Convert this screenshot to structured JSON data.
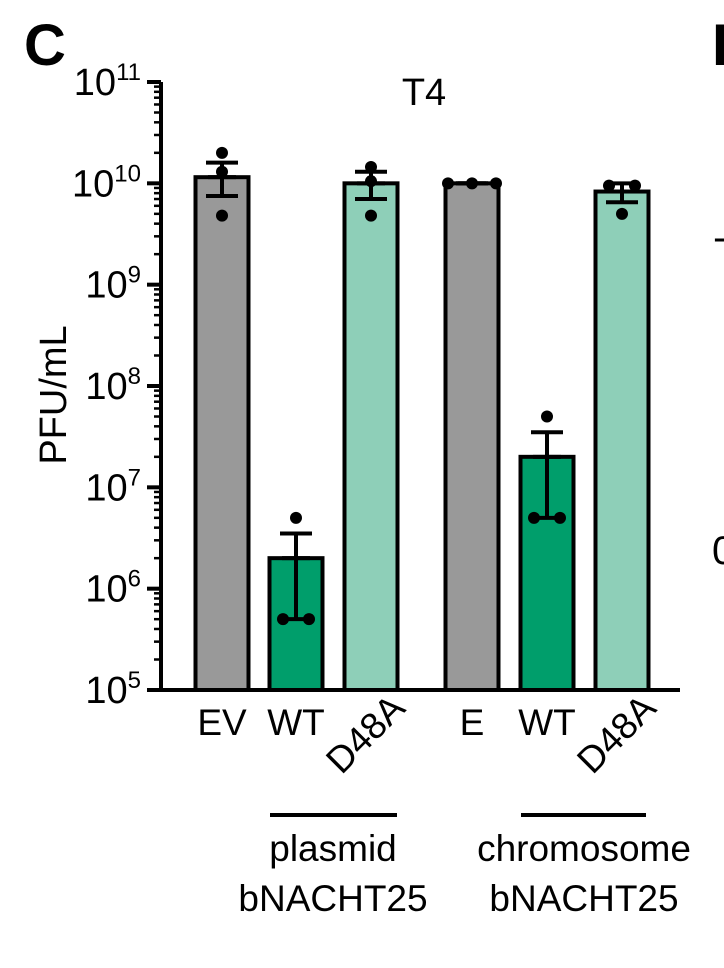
{
  "panel_letter": "C",
  "next_panel_letter": "D",
  "right_edge_fragments": [
    "T",
    "0"
  ],
  "chart_data": {
    "type": "bar",
    "title": "T4",
    "ylabel": "PFU/mL",
    "xlabel": "",
    "yscale": "log",
    "ylim": [
      100000,
      100000000000
    ],
    "ytick_labels": [
      {
        "base": "10",
        "exp": "5"
      },
      {
        "base": "10",
        "exp": "6"
      },
      {
        "base": "10",
        "exp": "7"
      },
      {
        "base": "10",
        "exp": "8"
      },
      {
        "base": "10",
        "exp": "9"
      },
      {
        "base": "10",
        "exp": "10"
      },
      {
        "base": "10",
        "exp": "11"
      }
    ],
    "categories": [
      "EV",
      "WT",
      "D48A",
      "E",
      "WT",
      "D48A"
    ],
    "values": [
      11500000000,
      2000000,
      10000000000,
      10000000000,
      20000000,
      8300000000
    ],
    "error_upper": [
      16000000000,
      3500000,
      13000000000,
      10000000000,
      35000000,
      10000000000
    ],
    "error_lower": [
      7500000000,
      500000,
      7000000000,
      10000000000,
      5000000,
      6500000000
    ],
    "points": [
      [
        20000000000,
        13000000000,
        4800000000
      ],
      [
        5000000,
        500000,
        500000
      ],
      [
        14500000000,
        10500000000,
        4800000000
      ],
      [
        10000000000,
        10000000000,
        10000000000
      ],
      [
        50000000,
        5000000,
        5000000
      ],
      [
        9500000000,
        9500000000,
        5000000000
      ]
    ],
    "colors": [
      "#999999",
      "#009E6B",
      "#8ECFB8",
      "#999999",
      "#009E6B",
      "#8ECFB8"
    ],
    "groups": [
      {
        "line1": "plasmid",
        "line2": "bNACHT25"
      },
      {
        "line1": "chromosome",
        "line2": "bNACHT25"
      }
    ],
    "grid": false,
    "legend": "none"
  }
}
